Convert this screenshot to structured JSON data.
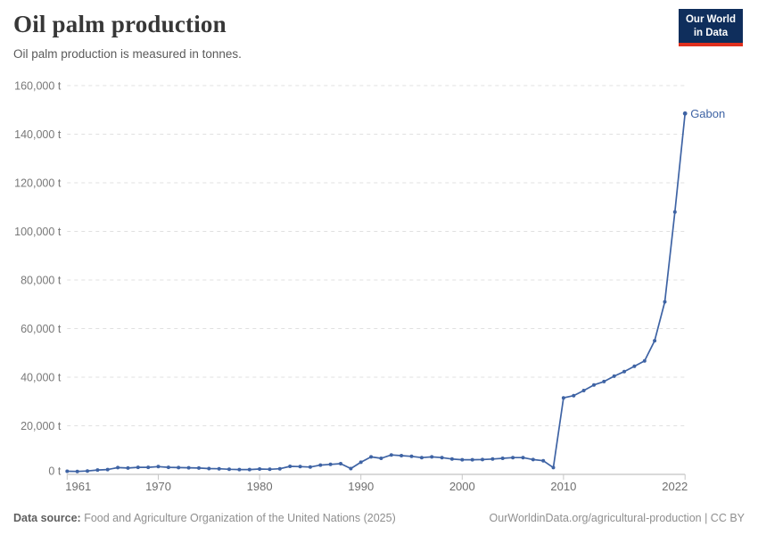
{
  "header": {
    "title": "Oil palm production",
    "subtitle": "Oil palm production is measured in tonnes.",
    "logo": {
      "line1": "Our World",
      "line2": "in Data"
    }
  },
  "chart_data": {
    "type": "line",
    "title": "Oil palm production",
    "unit": "tonnes",
    "xlabel": "",
    "ylabel": "",
    "grid": "horizontal-dashed",
    "legend_position": "end-of-line",
    "line_color": "#3e63a4",
    "xlim": [
      1961,
      2022
    ],
    "ylim": [
      0,
      160000
    ],
    "years": [
      1961,
      1962,
      1963,
      1964,
      1965,
      1966,
      1967,
      1968,
      1969,
      1970,
      1971,
      1972,
      1973,
      1974,
      1975,
      1976,
      1977,
      1978,
      1979,
      1980,
      1981,
      1982,
      1983,
      1984,
      1985,
      1986,
      1987,
      1988,
      1989,
      1990,
      1991,
      1992,
      1993,
      1994,
      1995,
      1996,
      1997,
      1998,
      1999,
      2000,
      2001,
      2002,
      2003,
      2004,
      2005,
      2006,
      2007,
      2008,
      2009,
      2010,
      2011,
      2012,
      2013,
      2014,
      2015,
      2016,
      2017,
      2018,
      2019,
      2020,
      2021,
      2022
    ],
    "series": [
      {
        "name": "Gabon",
        "values": [
          1300,
          1200,
          1400,
          1800,
          2000,
          2800,
          2600,
          2900,
          2900,
          3200,
          2900,
          2800,
          2700,
          2600,
          2400,
          2300,
          2100,
          2000,
          2000,
          2200,
          2100,
          2300,
          3300,
          3200,
          3000,
          3800,
          4100,
          4400,
          2400,
          5000,
          7200,
          6600,
          8000,
          7700,
          7400,
          6900,
          7200,
          6900,
          6300,
          6000,
          6000,
          6100,
          6300,
          6600,
          6900,
          6900,
          6100,
          5600,
          2800,
          31500,
          32400,
          34500,
          36800,
          38200,
          40400,
          42300,
          44500,
          46700,
          55000,
          71000,
          108000,
          148500
        ]
      }
    ],
    "y_ticks": [
      {
        "value": 0,
        "label": "0 t"
      },
      {
        "value": 20000,
        "label": "20,000 t"
      },
      {
        "value": 40000,
        "label": "40,000 t"
      },
      {
        "value": 60000,
        "label": "60,000 t"
      },
      {
        "value": 80000,
        "label": "80,000 t"
      },
      {
        "value": 100000,
        "label": "100,000 t"
      },
      {
        "value": 120000,
        "label": "120,000 t"
      },
      {
        "value": 140000,
        "label": "140,000 t"
      },
      {
        "value": 160000,
        "label": "160,000 t"
      }
    ],
    "x_ticks": [
      {
        "value": 1961,
        "label": "1961"
      },
      {
        "value": 1970,
        "label": "1970"
      },
      {
        "value": 1980,
        "label": "1980"
      },
      {
        "value": 1990,
        "label": "1990"
      },
      {
        "value": 2000,
        "label": "2000"
      },
      {
        "value": 2010,
        "label": "2010"
      },
      {
        "value": 2022,
        "label": "2022"
      }
    ]
  },
  "footer": {
    "datasource_label": "Data source:",
    "datasource_value": "Food and Agriculture Organization of the United Nations (2025)",
    "link": "OurWorldinData.org/agricultural-production | CC BY"
  },
  "colors": {
    "line": "#3e63a4",
    "logo_bg": "#0f2e5c",
    "logo_underline": "#e0301e",
    "grid": "#e0e0e0",
    "axis_text": "#6e6e6e"
  }
}
